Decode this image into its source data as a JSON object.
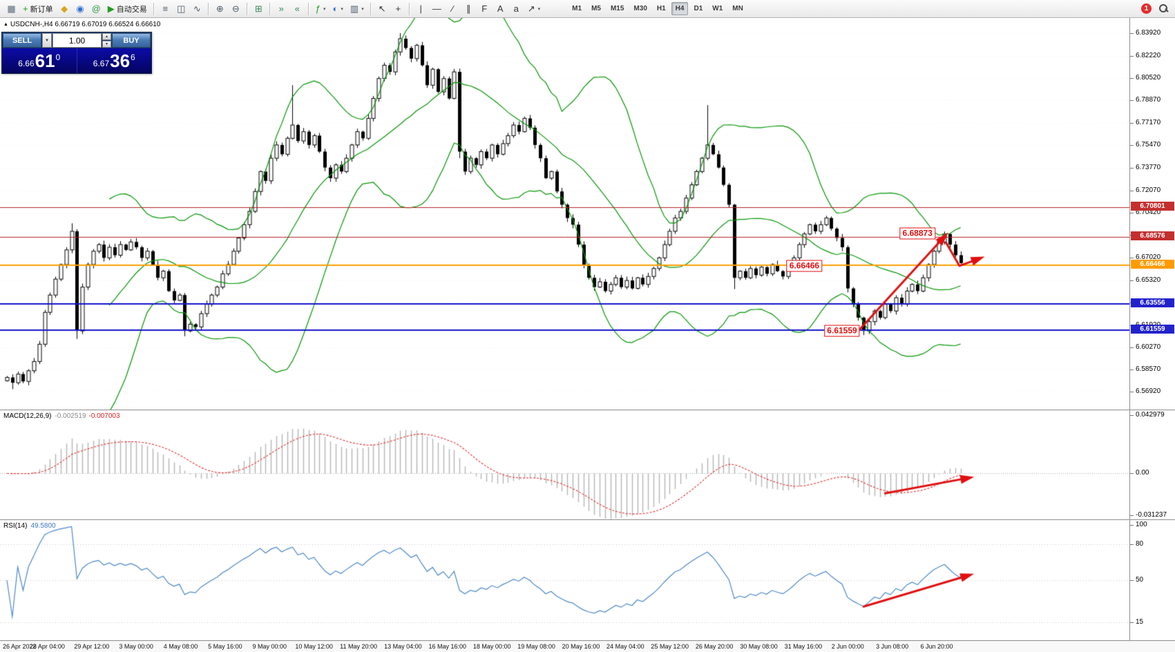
{
  "toolbar": {
    "groups": [
      {
        "items": [
          {
            "name": "new-chart-icon",
            "glyph": "▦",
            "color": "#5a6b7a"
          },
          {
            "name": "new-order-button",
            "glyph": "+",
            "color": "#1f9d1f",
            "label": "新订单"
          },
          {
            "name": "metaeditor-icon",
            "glyph": "◆",
            "color": "#d9a521"
          },
          {
            "name": "market-watch-icon",
            "glyph": "◉",
            "color": "#2f6fd0"
          },
          {
            "name": "community-icon",
            "glyph": "@",
            "color": "#2f9d4f"
          },
          {
            "name": "autotrading-button",
            "glyph": "▶",
            "color": "#1f9d1f",
            "label": "自动交易"
          }
        ]
      },
      {
        "items": [
          {
            "name": "bar-chart-icon",
            "glyph": "≡",
            "color": "#4a5a6a"
          },
          {
            "name": "candlestick-chart-icon",
            "glyph": "◫",
            "color": "#4a5a6a"
          },
          {
            "name": "line-chart-icon",
            "glyph": "∿",
            "color": "#4a5a6a"
          }
        ]
      },
      {
        "items": [
          {
            "name": "zoom-in-icon",
            "glyph": "⊕",
            "color": "#4a5a6a"
          },
          {
            "name": "zoom-out-icon",
            "glyph": "⊖",
            "color": "#4a5a6a"
          }
        ]
      },
      {
        "items": [
          {
            "name": "tile-windows-icon",
            "glyph": "⊞",
            "color": "#3a8a5a"
          }
        ]
      },
      {
        "items": [
          {
            "name": "auto-scroll-icon",
            "glyph": "»",
            "color": "#3a8a5a"
          },
          {
            "name": "chart-shift-icon",
            "glyph": "«",
            "color": "#3a8a5a"
          }
        ]
      },
      {
        "items": [
          {
            "name": "indicators-button",
            "glyph": "ƒ",
            "color": "#1f9d1f",
            "dropdown": true
          },
          {
            "name": "periods-button",
            "glyph": "◐",
            "color": "#2f6fd0",
            "dropdown": true
          },
          {
            "name": "templates-button",
            "glyph": "▥",
            "color": "#4a5a6a",
            "dropdown": true
          }
        ]
      },
      {
        "items": [
          {
            "name": "cursor-icon",
            "glyph": "↖",
            "color": "#333333"
          },
          {
            "name": "crosshair-icon",
            "glyph": "+",
            "color": "#333333"
          }
        ]
      },
      {
        "items": [
          {
            "name": "vertical-line-icon",
            "glyph": "|",
            "color": "#333333"
          },
          {
            "name": "horizontal-line-icon",
            "glyph": "—",
            "color": "#333333"
          },
          {
            "name": "trendline-icon",
            "glyph": "∕",
            "color": "#333333"
          },
          {
            "name": "channel-icon",
            "glyph": "∥",
            "color": "#333333"
          },
          {
            "name": "fibonacci-icon",
            "glyph": "F",
            "color": "#333333"
          },
          {
            "name": "text-icon",
            "glyph": "A",
            "color": "#333333"
          },
          {
            "name": "text-label-icon",
            "glyph": "a",
            "color": "#333333"
          },
          {
            "name": "arrows-tool-icon",
            "glyph": "↗",
            "color": "#333333",
            "dropdown": true
          }
        ]
      }
    ],
    "timeframes": [
      "M1",
      "M5",
      "M15",
      "M30",
      "H1",
      "H4",
      "D1",
      "W1",
      "MN"
    ],
    "active_timeframe": "H4",
    "notification_badge": "1"
  },
  "oneclick": {
    "sell_label": "SELL",
    "buy_label": "BUY",
    "volume": "1.00",
    "dropdown_glyph": "▼",
    "spinner_up": "▲",
    "spinner_down": "▼",
    "sell_price": {
      "prefix": "6.66",
      "big": "61",
      "sup": "0"
    },
    "buy_price": {
      "prefix": "6.67",
      "big": "36",
      "sup": "6"
    }
  },
  "chart_data": {
    "type": "candlestick",
    "symbol": "USDCNH-",
    "timeframe": "H4",
    "symbol_marker": "▲",
    "symbol_line": "USDCNH-,H4  6.66719 6.67019 6.66524 6.66610",
    "ohlc_current": {
      "open": "6.66719",
      "high": "6.67019",
      "low": "6.66524",
      "close": "6.66610"
    },
    "y_range": {
      "top": 6.8506,
      "bottom": 6.5558
    },
    "price_axis_ticks": [
      "6.83920",
      "6.82220",
      "6.80520",
      "6.78870",
      "6.77170",
      "6.75470",
      "6.73770",
      "6.72070",
      "6.70420",
      "6.68720",
      "6.67020",
      "6.65320",
      "6.63620",
      "6.61920",
      "6.60270",
      "6.58570",
      "6.56920"
    ],
    "time_axis_labels": [
      "26 Apr 2022",
      "28 Apr 04:00",
      "29 Apr 12:00",
      "3 May 00:00",
      "4 May 08:00",
      "5 May 16:00",
      "9 May 00:00",
      "10 May 12:00",
      "11 May 20:00",
      "13 May 04:00",
      "16 May 16:00",
      "18 May 00:00",
      "19 May 08:00",
      "20 May 16:00",
      "24 May 04:00",
      "25 May 12:00",
      "26 May 20:00",
      "30 May 08:00",
      "31 May 16:00",
      "2 Jun 00:00",
      "3 Jun 08:00",
      "6 Jun 20:00"
    ],
    "candles": {
      "closes": [
        6.58,
        6.576,
        6.5825,
        6.577,
        6.585,
        6.592,
        6.605,
        6.629,
        6.642,
        6.654,
        6.665,
        6.676,
        6.69,
        6.615,
        6.648,
        6.665,
        6.675,
        6.68,
        6.67,
        6.678,
        6.672,
        6.68,
        6.676,
        6.682,
        6.678,
        6.67,
        6.675,
        6.665,
        6.655,
        6.66,
        6.645,
        6.638,
        6.642,
        6.615,
        6.62,
        6.618,
        6.628,
        6.635,
        6.642,
        6.648,
        6.658,
        6.665,
        6.675,
        6.685,
        6.695,
        6.705,
        6.72,
        6.735,
        6.728,
        6.745,
        6.755,
        6.748,
        6.76,
        6.77,
        6.758,
        6.765,
        6.755,
        6.762,
        6.75,
        6.738,
        6.73,
        6.74,
        6.735,
        6.745,
        6.755,
        6.765,
        6.76,
        6.775,
        6.79,
        6.805,
        6.815,
        6.81,
        6.825,
        6.835,
        6.828,
        6.82,
        6.83,
        6.815,
        6.8,
        6.812,
        6.795,
        6.805,
        6.79,
        6.81,
        6.75,
        6.735,
        6.745,
        6.74,
        6.75,
        6.745,
        6.755,
        6.748,
        6.756,
        6.762,
        6.77,
        6.765,
        6.775,
        6.768,
        6.755,
        6.745,
        6.73,
        6.735,
        6.72,
        6.71,
        6.7,
        6.695,
        6.68,
        6.665,
        6.655,
        6.648,
        6.652,
        6.645,
        6.65,
        6.655,
        6.648,
        6.653,
        6.647,
        6.655,
        6.65,
        6.656,
        6.662,
        6.67,
        6.68,
        6.69,
        6.7,
        6.705,
        6.715,
        6.725,
        6.735,
        6.745,
        6.755,
        6.748,
        6.738,
        6.725,
        6.71,
        6.655,
        6.66,
        6.655,
        6.662,
        6.657,
        6.663,
        6.658,
        6.665,
        6.66,
        6.656,
        6.662,
        6.67,
        6.68,
        6.688,
        6.695,
        6.69,
        6.695,
        6.7,
        6.692,
        6.685,
        6.678,
        6.647,
        6.635,
        6.625,
        6.615,
        6.622,
        6.63,
        6.625,
        6.635,
        6.63,
        6.64,
        6.635,
        6.645,
        6.65,
        6.645,
        6.655,
        6.665,
        6.675,
        6.682,
        6.688,
        6.68,
        6.672,
        6.6661
      ],
      "wick_overrides": {
        "1": {
          "l": 6.5712
        },
        "12": {
          "h": 6.696
        },
        "13": {
          "l": 6.609
        },
        "33": {
          "l": 6.611
        },
        "53": {
          "h": 6.8
        },
        "73": {
          "h": 6.8392
        },
        "84": {
          "l": 6.745
        },
        "130": {
          "h": 6.785
        },
        "135": {
          "l": 6.6465
        },
        "156": {
          "l": 6.644
        },
        "159": {
          "l": 6.6118
        },
        "174": {
          "h": 6.6898
        }
      }
    },
    "bollinger": {
      "period": 20,
      "deviation": 2,
      "color": "#009600"
    },
    "horizontal_lines": [
      {
        "price": 6.70801,
        "label": "6.70801",
        "color": "#b22222",
        "width": 1,
        "label_bg": "#c42f2f",
        "label_color": "#ffffff"
      },
      {
        "price": 6.68576,
        "label": "6.68576",
        "color": "#b22222",
        "width": 1,
        "label_bg": "#c42f2f",
        "label_color": "#ffffff"
      },
      {
        "price": 6.66466,
        "label": "6.66466",
        "color": "#ffa000",
        "width": 2,
        "label_bg": "#ff9c00",
        "label_color": "#ffffff"
      },
      {
        "price": 6.63556,
        "label": "6.63556",
        "color": "#1515cc",
        "width": 2,
        "label_bg": "#2222cc",
        "label_color": "#ffffff"
      },
      {
        "price": 6.61559,
        "label": "6.61559",
        "color": "#1515cc",
        "width": 2,
        "label_bg": "#2222cc",
        "label_color": "#ffffff"
      }
    ],
    "annotations": [
      {
        "text": "6.68873",
        "index": 169,
        "price": 6.6885
      },
      {
        "text": "6.66466",
        "index": 148,
        "price": 6.6638
      },
      {
        "text": "6.61559",
        "index": 155,
        "price": 6.6152
      }
    ],
    "arrows": {
      "main": [
        {
          "points": [
            [
              158,
              6.615
            ],
            [
              174,
              6.686
            ]
          ],
          "width": 3
        },
        {
          "points": [
            [
              174.3,
              6.6815
            ],
            [
              176.8,
              6.664
            ],
            [
              180.5,
              6.6695
            ]
          ],
          "width": 3
        }
      ],
      "macd": [
        {
          "points": [
            [
              163,
              -0.0135
            ],
            [
              178.5,
              -0.003
            ]
          ],
          "width": 3
        }
      ],
      "rsi": [
        {
          "points": [
            [
              159,
              28
            ],
            [
              178.5,
              54
            ]
          ],
          "width": 3
        }
      ]
    },
    "macd": {
      "label": "MACD(12,26,9)",
      "value_main": "-0.002519",
      "value_signal": "-0.007003",
      "ticks": [
        "0.042979",
        "0.00",
        "-0.031237"
      ],
      "range": {
        "max": 0.042979,
        "min": -0.031237
      },
      "fast": 12,
      "slow": 26,
      "signal": 9,
      "histogram_color": "#b4b4b4",
      "signal_color": "#e03030"
    },
    "rsi": {
      "label": "RSI(14)",
      "value": "49.5800",
      "period": 14,
      "ticks": [
        100,
        80,
        50,
        15
      ],
      "levels": [
        80,
        50,
        15
      ],
      "color": "#4a86c8"
    },
    "arrow_color": "#e01010"
  }
}
